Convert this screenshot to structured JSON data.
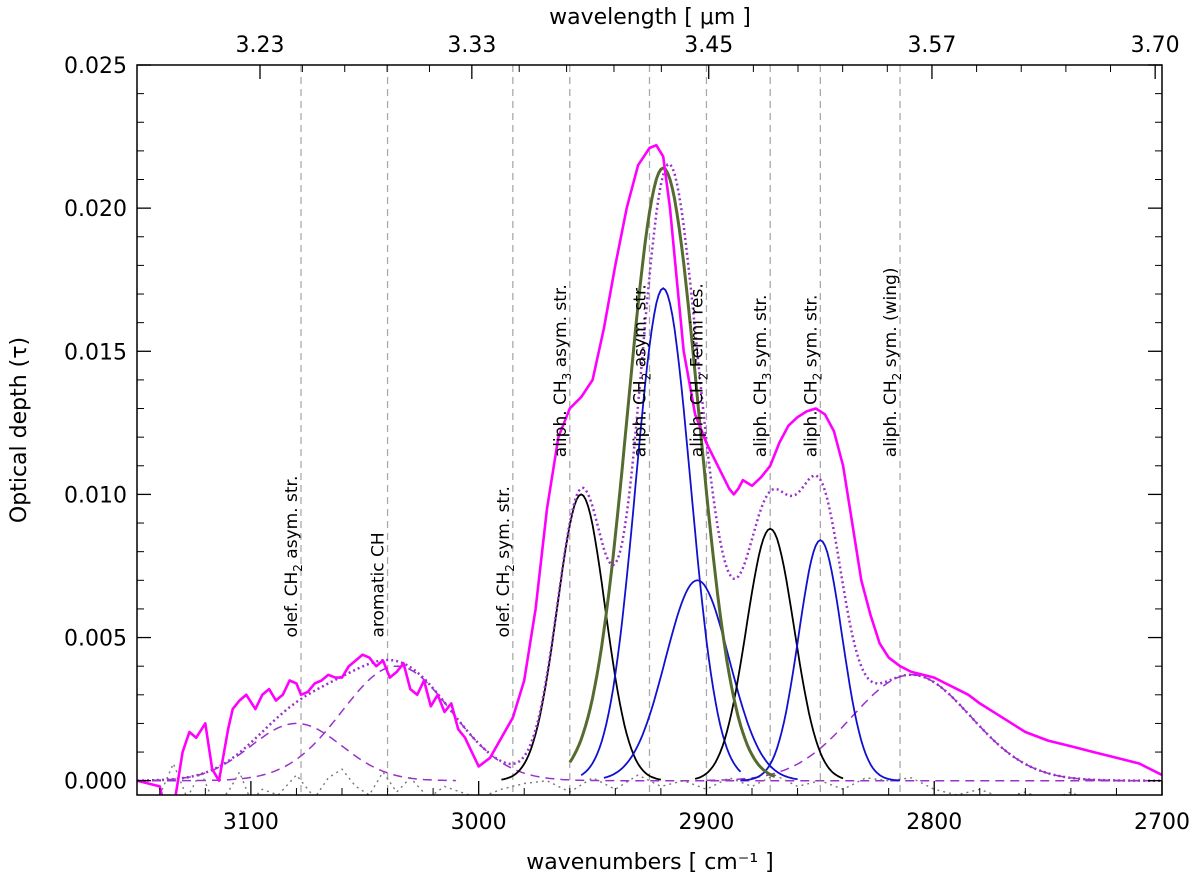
{
  "chart_data": {
    "type": "line",
    "xlabel": "wavenumbers [ cm⁻¹ ]",
    "ylabel": "Optical depth (τ)",
    "top_xlabel": "wavelength [ μm ]",
    "xlim": [
      3150,
      2700
    ],
    "ylim": [
      -0.0005,
      0.025
    ],
    "x_ticks": [
      3100,
      3000,
      2900,
      2800,
      2700
    ],
    "x_tick_labels": [
      "3100",
      "3000",
      "2900",
      "2800",
      "2700"
    ],
    "y_ticks": [
      0.0,
      0.005,
      0.01,
      0.015,
      0.02,
      0.025
    ],
    "y_tick_labels": [
      "0.000",
      "0.005",
      "0.010",
      "0.015",
      "0.020",
      "0.025"
    ],
    "top_ticks": [
      {
        "wn": 3096,
        "label": "3.23"
      },
      {
        "wn": 3003,
        "label": "3.33"
      },
      {
        "wn": 2899,
        "label": "3.45"
      },
      {
        "wn": 2801,
        "label": "3.57"
      },
      {
        "wn": 2703,
        "label": "3.70"
      }
    ],
    "reference_lines": [
      {
        "wn": 3078,
        "label": "olef. CH",
        "sub": "2",
        "rest": " asym. str."
      },
      {
        "wn": 3040,
        "label": "aromatic CH",
        "sub": "",
        "rest": ""
      },
      {
        "wn": 2985,
        "label": "olef. CH",
        "sub": "2",
        "rest": " sym. str."
      },
      {
        "wn": 2960,
        "label": "aliph. CH",
        "sub": "3",
        "rest": " asym. str."
      },
      {
        "wn": 2925,
        "label": "aliph. CH",
        "sub": "2",
        "rest": " asym. str."
      },
      {
        "wn": 2900,
        "label": "aliph. CH",
        "sub": "2",
        "rest": " Fermi res."
      },
      {
        "wn": 2872,
        "label": "aliph. CH",
        "sub": "3",
        "rest": " sym. str."
      },
      {
        "wn": 2850,
        "label": "aliph. CH",
        "sub": "2",
        "rest": " sym. str."
      },
      {
        "wn": 2815,
        "label": "aliph. CH",
        "sub": "2",
        "rest": " sym. (wing)"
      }
    ],
    "gaussians": [
      {
        "center": 2955,
        "amp": 0.01,
        "sigma": 10.5,
        "range": [
          2990,
          2920
        ],
        "color": "#000000"
      },
      {
        "center": 2919,
        "amp": 0.0172,
        "sigma": 12.0,
        "range": [
          2955,
          2885
        ],
        "color": "#1010d0"
      },
      {
        "center": 2904,
        "amp": 0.007,
        "sigma": 14.0,
        "range": [
          2945,
          2860
        ],
        "color": "#1010d0"
      },
      {
        "center": 2872,
        "amp": 0.0088,
        "sigma": 10.5,
        "range": [
          2905,
          2840
        ],
        "color": "#000000"
      },
      {
        "center": 2850,
        "amp": 0.0084,
        "sigma": 9.5,
        "range": [
          2885,
          2815
        ],
        "color": "#1010d0"
      }
    ],
    "sum_gaussian": {
      "center": 2919,
      "amp": 0.0214,
      "sigma": 15.5,
      "range": [
        2960,
        2870
      ],
      "color": "#556b2f"
    },
    "broad_gaussians": [
      {
        "center": 3080,
        "amp": 0.002,
        "sigma": 20.0,
        "range": [
          3150,
          3010
        ]
      },
      {
        "center": 3036,
        "amp": 0.004,
        "sigma": 24.0,
        "range": [
          3150,
          2700
        ]
      },
      {
        "center": 2810,
        "amp": 0.0037,
        "sigma": 26.0,
        "range": [
          2900,
          2700
        ]
      }
    ],
    "observed": {
      "color": "#ff00ff",
      "x": [
        3150,
        3140,
        3137,
        3133,
        3130,
        3127,
        3124,
        3120,
        3117,
        3114,
        3110,
        3108,
        3105,
        3102,
        3098,
        3095,
        3092,
        3089,
        3086,
        3083,
        3080,
        3078,
        3075,
        3072,
        3069,
        3066,
        3063,
        3060,
        3057,
        3054,
        3051,
        3048,
        3045,
        3042,
        3039,
        3036,
        3033,
        3030,
        3027,
        3024,
        3021,
        3018,
        3015,
        3012,
        3009,
        3006,
        3003,
        3000,
        2995,
        2990,
        2985,
        2980,
        2975,
        2970,
        2965,
        2960,
        2955,
        2950,
        2945,
        2940,
        2935,
        2930,
        2925,
        2922,
        2919,
        2916,
        2913,
        2910,
        2905,
        2900,
        2895,
        2890,
        2888,
        2886,
        2884,
        2880,
        2876,
        2872,
        2868,
        2864,
        2860,
        2856,
        2852,
        2848,
        2844,
        2840,
        2836,
        2832,
        2828,
        2824,
        2820,
        2815,
        2810,
        2805,
        2800,
        2795,
        2790,
        2785,
        2780,
        2770,
        2760,
        2750,
        2740,
        2730,
        2720,
        2710,
        2700
      ],
      "y": [
        0.0,
        -0.0002,
        -0.0012,
        -0.0005,
        0.001,
        0.0017,
        0.0015,
        0.002,
        0.0004,
        0.0,
        0.0018,
        0.0025,
        0.0028,
        0.003,
        0.0025,
        0.003,
        0.0032,
        0.0028,
        0.003,
        0.0035,
        0.0034,
        0.003,
        0.0031,
        0.0034,
        0.0035,
        0.0037,
        0.0036,
        0.0036,
        0.004,
        0.0042,
        0.0044,
        0.0043,
        0.004,
        0.0042,
        0.0036,
        0.0038,
        0.0041,
        0.0032,
        0.003,
        0.0035,
        0.0026,
        0.003,
        0.0024,
        0.0027,
        0.0018,
        0.0015,
        0.001,
        0.0005,
        0.0008,
        0.0015,
        0.0022,
        0.0035,
        0.006,
        0.0095,
        0.012,
        0.013,
        0.0134,
        0.014,
        0.0158,
        0.018,
        0.02,
        0.0215,
        0.0221,
        0.0222,
        0.0218,
        0.02,
        0.0175,
        0.015,
        0.0128,
        0.0118,
        0.011,
        0.0102,
        0.01,
        0.0102,
        0.0105,
        0.0103,
        0.0106,
        0.011,
        0.0118,
        0.0124,
        0.0127,
        0.0129,
        0.013,
        0.0128,
        0.0122,
        0.011,
        0.009,
        0.007,
        0.0058,
        0.0048,
        0.0043,
        0.004,
        0.0038,
        0.0037,
        0.0036,
        0.0034,
        0.0032,
        0.003,
        0.0027,
        0.0022,
        0.0017,
        0.0014,
        0.0012,
        0.001,
        0.0008,
        0.0006,
        0.0002
      ]
    },
    "residual": {
      "x": [
        3150,
        3140,
        3134,
        3128,
        3122,
        3116,
        3110,
        3105,
        3100,
        3095,
        3088,
        3080,
        3072,
        3066,
        3060,
        3054,
        3048,
        3042,
        3036,
        3030,
        3022,
        3015,
        3008,
        3000,
        2990,
        2980,
        2970,
        2960,
        2950,
        2940,
        2930,
        2920,
        2910,
        2900,
        2890,
        2880,
        2870,
        2860,
        2850,
        2840,
        2830,
        2820,
        2810,
        2800,
        2790,
        2780,
        2770,
        2760,
        2750,
        2740,
        2730,
        2720,
        2710,
        2700
      ],
      "y": [
        -0.0008,
        -0.0005,
        0.0006,
        -0.0006,
        0.0003,
        -0.0008,
        -0.0004,
        0.0003,
        -0.0007,
        -0.0003,
        -0.0005,
        0.0002,
        -0.0006,
        0.0001,
        0.0004,
        -0.0002,
        -0.0005,
        0.0003,
        -0.0004,
        0.0001,
        -0.0006,
        -0.0002,
        -0.0004,
        -0.0006,
        -0.0003,
        -0.0001,
        0.0,
        -0.0004,
        0.0001,
        -0.0003,
        0.0002,
        -0.0002,
        0.0,
        -0.0003,
        0.0001,
        -0.0002,
        0.0002,
        -0.0002,
        0.0,
        -0.0003,
        0.0001,
        0.0,
        0.0001,
        -0.0003,
        -0.0005,
        -0.0003,
        -0.0006,
        -0.0004,
        -0.0007,
        -0.0004,
        -0.0008,
        -0.0005,
        -0.0008,
        -0.0006
      ]
    }
  }
}
